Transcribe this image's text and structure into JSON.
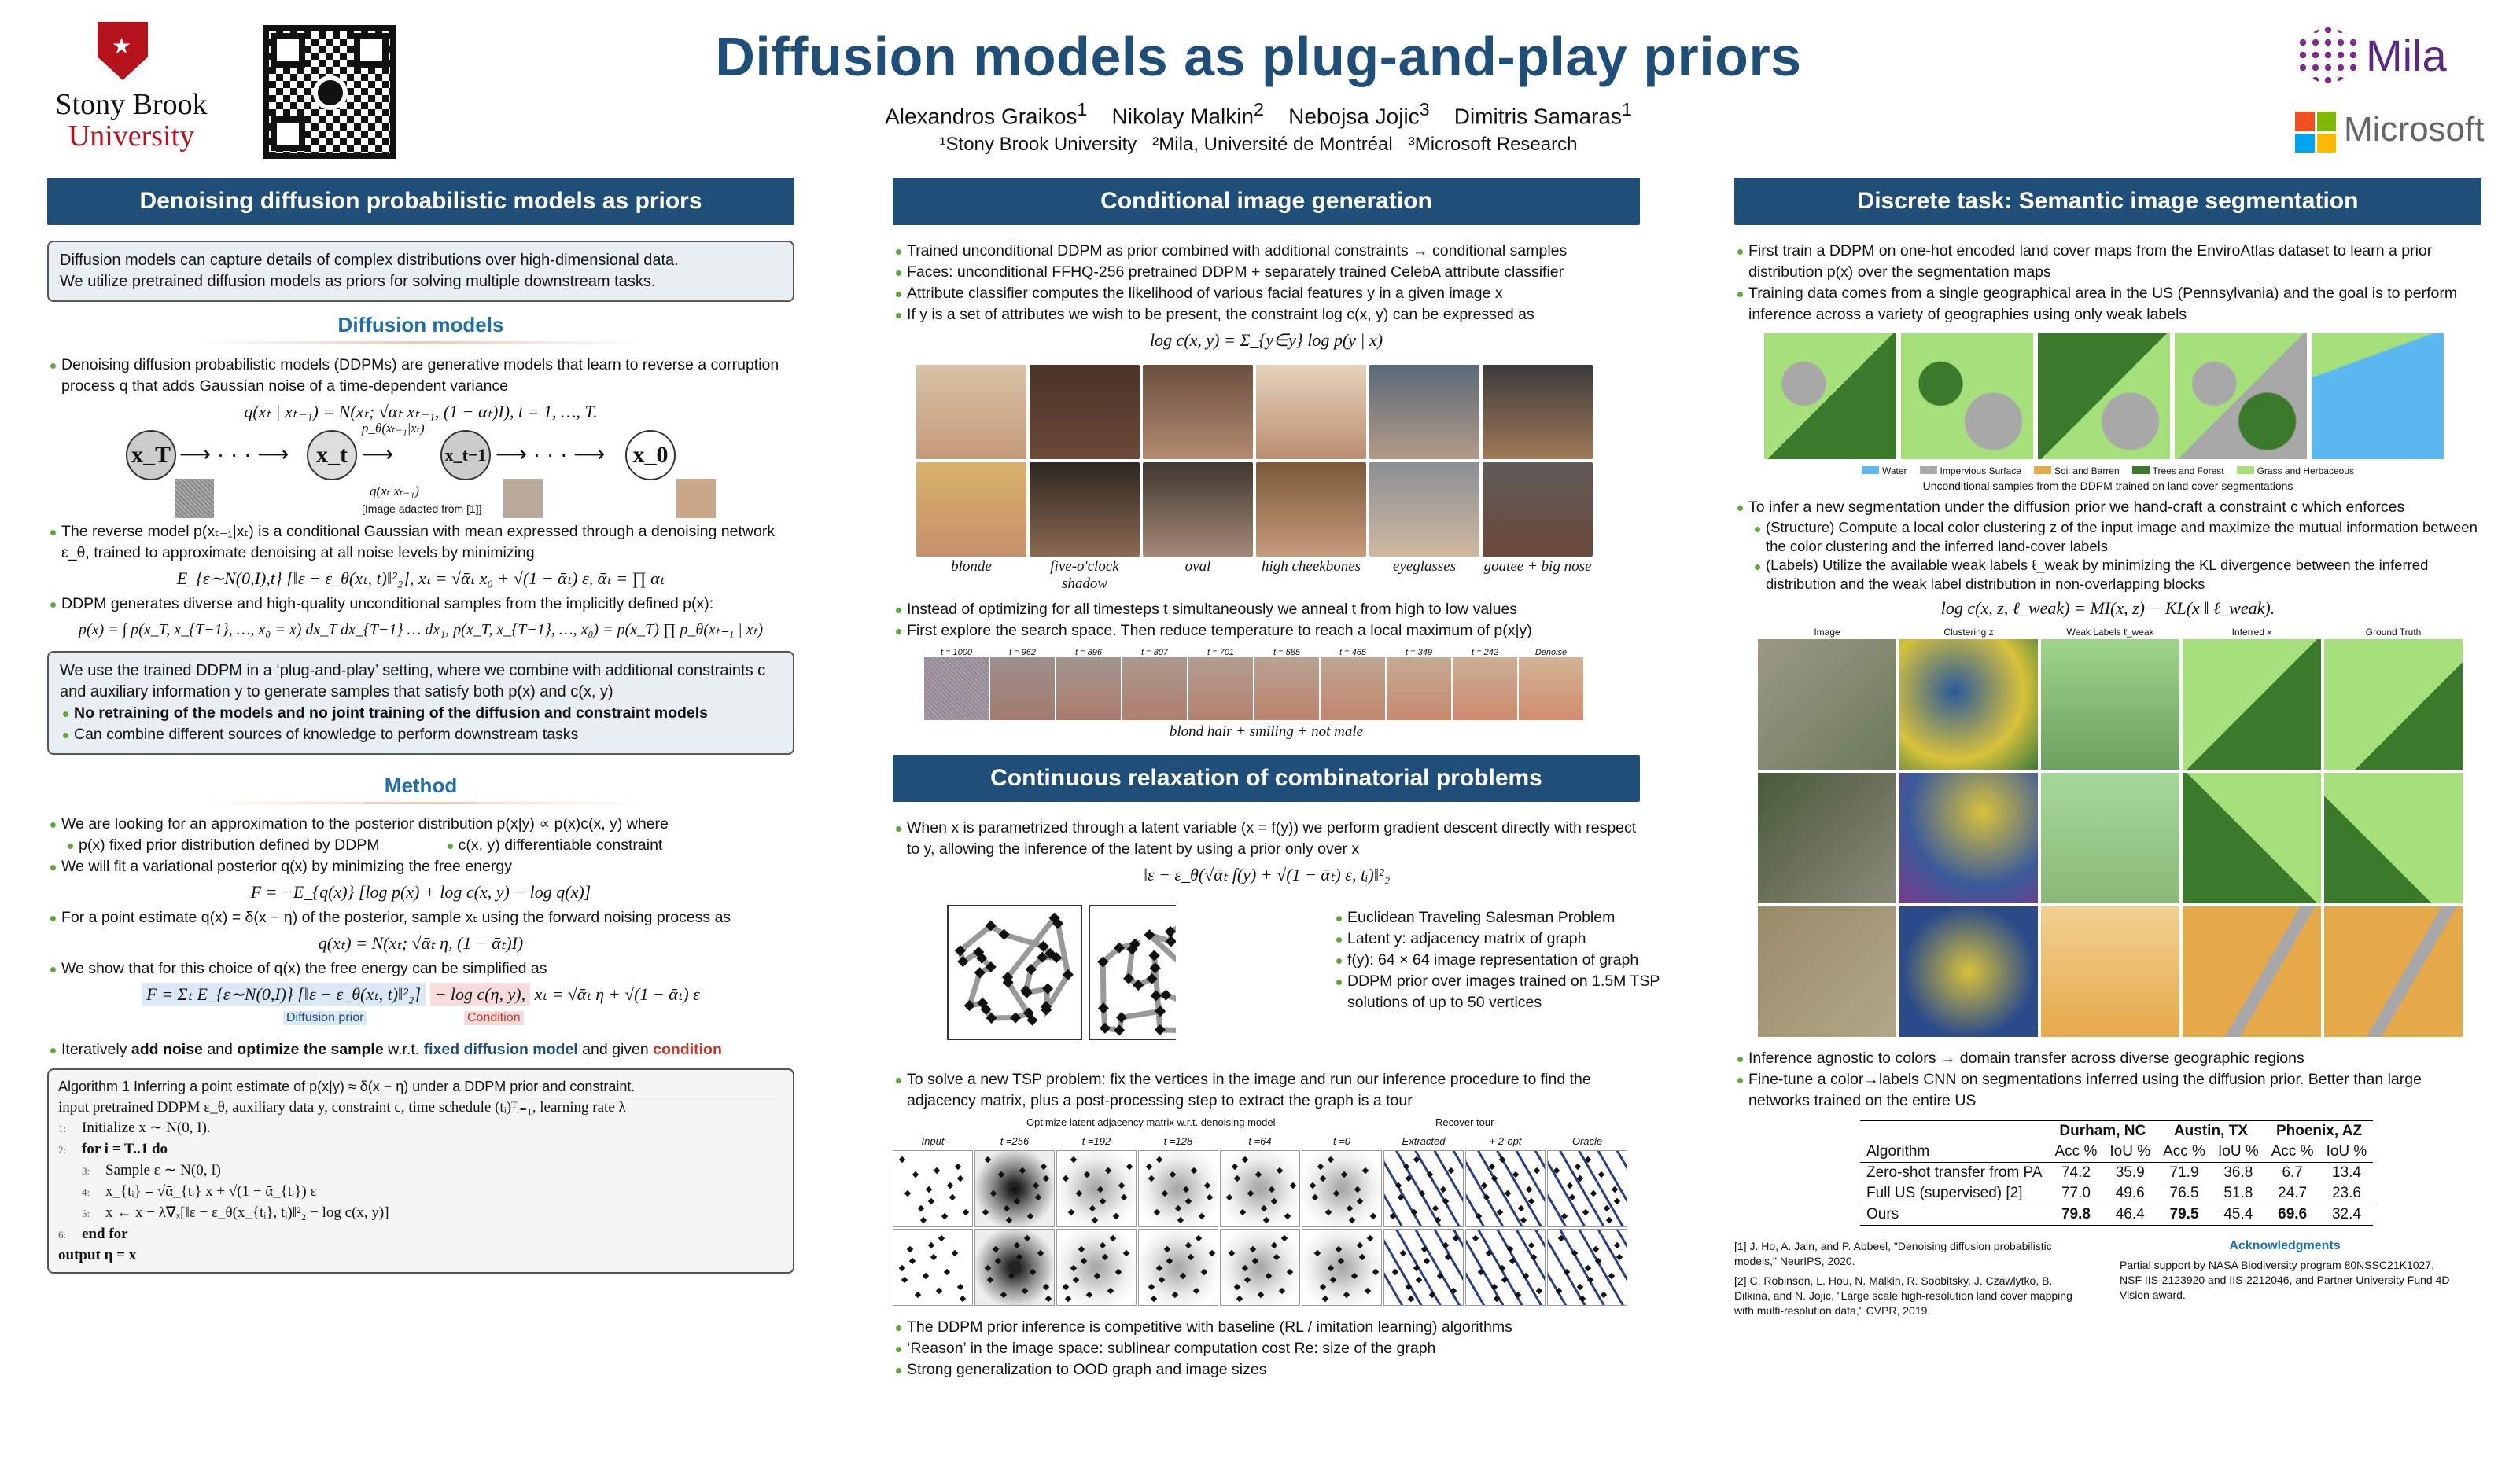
{
  "header": {
    "title": "Diffusion models as plug-and-play priors",
    "authors": [
      "Alexandros Graikos",
      "Nikolay Malkin",
      "Nebojsa Jojic",
      "Dimitris Samaras"
    ],
    "author_marks": [
      "1",
      "2",
      "3",
      "1"
    ],
    "affiliations": "¹Stony Brook University   ²Mila, Université de Montréal   ³Microsoft Research",
    "logos": {
      "sbu_line1": "Stony Brook",
      "sbu_line2": "University",
      "mila": "Mila",
      "microsoft": "Microsoft"
    }
  },
  "col1": {
    "section_title": "Denoising diffusion probabilistic models as priors",
    "intro_box": [
      "Diffusion models can capture details of complex distributions over high-dimensional data.",
      "We utilize pretrained diffusion models as priors for solving multiple downstream tasks."
    ],
    "sub1": "Diffusion models",
    "dm_bullet1": "Denoising diffusion probabilistic models (DDPMs) are generative models that learn to reverse a corruption process q that adds Gaussian noise of a time-dependent variance",
    "dm_eq1": "q(xₜ | xₜ₋₁) = N(xₜ; √αₜ xₜ₋₁, (1 − αₜ)I),    t = 1, …, T.",
    "chain_nodes": [
      "x_T",
      "x_t",
      "x_t−1",
      "x_0"
    ],
    "chain_p": "p_θ(xₜ₋₁|xₜ)",
    "chain_q": "q(xₜ|xₜ₋₁)",
    "chain_credit": "[Image adapted from [1]]",
    "dm_bullet2": "The reverse model p(xₜ₋₁|xₜ) is a conditional Gaussian with mean expressed through a denoising network ε_θ, trained to approximate denoising at all noise levels by minimizing",
    "dm_eq2": "E_{ε∼N(0,I),t} [‖ε − ε_θ(xₜ, t)‖²₂],   xₜ = √ᾱₜ x₀ + √(1 − ᾱₜ) ε,   ᾱₜ = ∏ αₜ",
    "dm_bullet3": "DDPM generates diverse and high-quality unconditional samples from the implicitly defined p(x):",
    "dm_eq3": "p(x) = ∫ p(x_T, x_{T−1}, …, x₀ = x) dx_T dx_{T−1} … dx₁,    p(x_T, x_{T−1}, …, x₀) = p(x_T) ∏ p_θ(xₜ₋₁ | xₜ)",
    "pnp_box": {
      "text": "We use the trained DDPM in a ‘plug-and-play’ setting, where we combine with additional constraints c and auxiliary information y to generate samples that satisfy both p(x) and c(x, y)",
      "b1": "No retraining of the models and no joint training of the diffusion and constraint models",
      "b2": "Can combine different sources of knowledge to perform downstream tasks"
    },
    "sub2": "Method",
    "m1": "We are looking for an approximation to the posterior distribution p(x|y) ∝ p(x)c(x, y) where",
    "m1a": "p(x) fixed prior distribution defined by DDPM",
    "m1b": "c(x, y) differentiable constraint",
    "m2": "We will fit a variational posterior q(x) by minimizing the free energy",
    "m_eq1": "F = −E_{q(x)} [log p(x) + log c(x, y) − log q(x)]",
    "m3": "For a point estimate q(x) = δ(x − η) of the posterior, sample xₜ using the forward noising process as",
    "m_eq2": "q(xₜ) = N(xₜ; √ᾱₜ η, (1 − ᾱₜ)I)",
    "m4": "We show that for this choice of q(x) the free energy can be simplified as",
    "m_eq3a": "F = Σₜ E_{ε∼N(0,I)} [‖ε − ε_θ(xₜ, t)‖²₂]",
    "m_eq3b": "− log c(η, y),",
    "m_eq3c": "xₜ = √ᾱₜ η + √(1 − ᾱₜ) ε",
    "tag_prior": "Diffusion prior",
    "tag_cond": "Condition",
    "m5a": "Iteratively",
    "m5b": "add noise",
    "m5c": "and",
    "m5d": "optimize the sample",
    "m5e": "w.r.t.",
    "m5f": "fixed diffusion model",
    "m5g": "and given",
    "m5h": "condition",
    "alg": {
      "title": "Algorithm 1 Inferring a point estimate of p(x|y) ≈ δ(x − η) under a DDPM prior and constraint.",
      "input": "input  pretrained DDPM ε_θ, auxiliary data y, constraint c, time schedule (tᵢ)ᵀᵢ₌₁, learning rate λ",
      "lines": [
        "Initialize x ∼ N(0, I).",
        "for i = T..1 do",
        "Sample ε ∼ N(0, I)",
        "x_{tᵢ} = √ᾱ_{tᵢ} x + √(1 − ᾱ_{tᵢ}) ε",
        "x ← x − λ∇ₓ[‖ε − ε_θ(x_{tᵢ}, tᵢ)‖²₂ − log c(x, y)]",
        "end for"
      ],
      "output": "output η = x"
    }
  },
  "col2": {
    "section1": "Conditional image generation",
    "c1": "Trained unconditional DDPM as prior combined with additional constraints → conditional samples",
    "c2": "Faces: unconditional FFHQ-256 pretrained DDPM + separately trained CelebA attribute classifier",
    "c3": "Attribute classifier computes the likelihood of various facial features y in a given image x",
    "c4": "If y is a set of attributes we wish to be present, the constraint log c(x, y) can be expressed as",
    "c_eq": "log c(x, y) = Σ_{y∈y} log p(y | x)",
    "attr_labels": [
      "blonde",
      "five-o'clock shadow",
      "oval",
      "high cheekbones",
      "eyeglasses",
      "goatee + big nose"
    ],
    "c5": "Instead of optimizing for all timesteps t simultaneously we anneal t from high to low values",
    "c6": "First explore the search space.  Then reduce temperature to reach a local maximum of p(x|y)",
    "steps": [
      "t = 1000",
      "t = 962",
      "t = 896",
      "t = 807",
      "t = 701",
      "t = 585",
      "t = 465",
      "t = 349",
      "t = 242",
      "Denoise"
    ],
    "steps_caption": "blond hair + smiling + not male",
    "section2": "Continuous relaxation of combinatorial problems",
    "r1": "When x is parametrized through a latent variable (x = f(y)) we perform gradient descent directly with respect to y, allowing the inference of the latent by using a prior only over x",
    "r_eq": "‖ε − ε_θ(√ᾱₜ f(y) + √(1 − ᾱₜ) ε, tᵢ)‖²₂",
    "tsp_bullets": [
      "Euclidean Traveling Salesman Problem",
      "Latent y: adjacency matrix of graph",
      "f(y): 64 × 64 image representation of graph",
      "DDPM prior over images trained on 1.5M TSP solutions of up to 50 vertices"
    ],
    "r2": "To solve a new TSP problem: fix the vertices in the image and run our inference procedure to find the adjacency matrix, plus a post-processing step to extract the graph is a tour",
    "tsp_header_opt": "Optimize latent adjacency matrix w.r.t. denoising model",
    "tsp_header_rec": "Recover tour",
    "tsp_cols": [
      "Input",
      "t =256",
      "t =192",
      "t =128",
      "t =64",
      "t =0",
      "Extracted",
      "+ 2-opt",
      "Oracle"
    ],
    "r3": "The DDPM prior inference is competitive with baseline (RL / imitation learning) algorithms",
    "r4": "‘Reason’ in the image space: sublinear computation cost Re: size of the graph",
    "r5": "Strong generalization to OOD graph and image sizes"
  },
  "col3": {
    "section": "Discrete task: Semantic image segmentation",
    "s1": "First train a DDPM on one-hot encoded land cover maps from the EnviroAtlas dataset to learn a prior distribution p(x) over the segmentation maps",
    "s2": "Training data comes from a single geographical area in the US (Pennsylvania) and the goal is to perform inference across a variety of geographies using only weak labels",
    "legend": [
      {
        "name": "Water",
        "color": "#5bb8f0"
      },
      {
        "name": "Impervious Surface",
        "color": "#a8a8a8"
      },
      {
        "name": "Soil and Barren",
        "color": "#e6a94a"
      },
      {
        "name": "Trees and Forest",
        "color": "#3a7a2a"
      },
      {
        "name": "Grass and Herbaceous",
        "color": "#a6e07a"
      }
    ],
    "uncond_caption": "Unconditional samples from the DDPM trained on land cover segmentations",
    "s3": "To infer a new segmentation under the diffusion prior we hand-craft a constraint c which enforces",
    "s3a": "(Structure) Compute a local color clustering z of the input image and maximize the mutual information between the color clustering and the inferred land-cover labels",
    "s3b": "(Labels) Utilize the available weak labels ℓ_weak by minimizing the KL divergence between the inferred distribution and the weak label distribution in non-overlapping blocks",
    "s_eq": "log c(x, z, ℓ_weak) = MI(x, z) − KL(x ‖ ℓ_weak).",
    "grid_cols": [
      "Image",
      "Clustering z",
      "Weak Labels ℓ_weak",
      "Inferred x",
      "Ground Truth"
    ],
    "s4": "Inference agnostic to colors → domain transfer across diverse geographic regions",
    "s5": "Fine-tune a color→labels CNN on segmentations inferred using the diffusion prior. Better than large networks trained on the entire US",
    "table": {
      "regions": [
        "Durham, NC",
        "Austin, TX",
        "Phoenix, AZ"
      ],
      "metrics": [
        "Acc %",
        "IoU %",
        "Acc %",
        "IoU %",
        "Acc %",
        "IoU %"
      ],
      "algo_header": "Algorithm",
      "rows": [
        {
          "name": "Zero-shot transfer from PA",
          "vals": [
            "74.2",
            "35.9",
            "71.9",
            "36.8",
            "6.7",
            "13.4"
          ]
        },
        {
          "name": "Full US (supervised) [2]",
          "vals": [
            "77.0",
            "49.6",
            "76.5",
            "51.8",
            "24.7",
            "23.6"
          ]
        },
        {
          "name": "Ours",
          "vals": [
            "79.8",
            "46.4",
            "79.5",
            "45.4",
            "69.6",
            "32.4"
          ]
        }
      ]
    },
    "refs": [
      "[1] J. Ho, A. Jain, and P. Abbeel, \"Denoising diffusion probabilistic models,\" NeurIPS, 2020.",
      "[2] C. Robinson, L. Hou, N. Malkin, R. Soobitsky, J. Czawlytko, B. Dilkina, and N. Jojic, \"Large scale high-resolution land cover mapping with multi-resolution data,\" CVPR, 2019."
    ],
    "ack_title": "Acknowledgments",
    "ack": "Partial support by NASA Biodiversity program 80NSSC21K1027, NSF IIS-2123920 and IIS-2212046, and Partner University Fund 4D Vision award."
  }
}
